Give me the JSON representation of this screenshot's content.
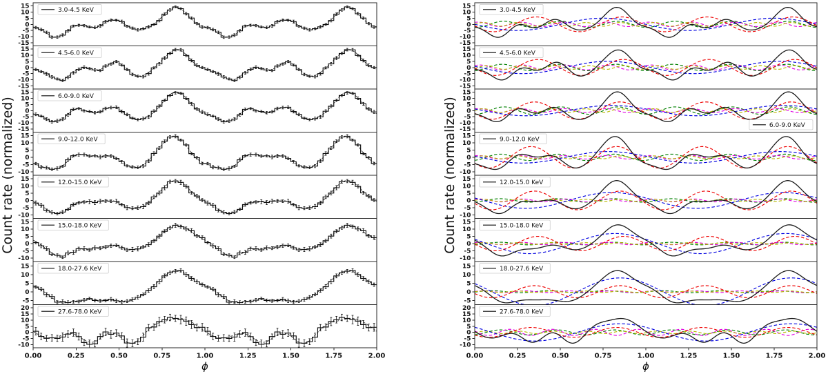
{
  "figure": {
    "ylabel": "Count rate (normalized)",
    "xlabel": "ϕ",
    "background": "#ffffff"
  },
  "chart_data": {
    "type": "line",
    "title": "",
    "xlabel": "ϕ",
    "ylabel": "Count rate (normalized)",
    "x_range": [
      0,
      2
    ],
    "x_tick_labels": [
      "0.00",
      "0.25",
      "0.50",
      "0.75",
      "1.00",
      "1.25",
      "1.50",
      "1.75",
      "2.00"
    ],
    "grid": false,
    "columns": [
      {
        "name": "pulse-profiles",
        "content": "binned count-rate pulse profiles (step histogram with error bars) with dashed best-fit model overlaid"
      },
      {
        "name": "harmonic-decomposition",
        "content": "best-fit model (black solid) with Fourier harmonic components 1-5 (colored dashed)"
      }
    ],
    "total_color": "#1a1a1a",
    "model_fit_color": "#333333",
    "harmonic_colors": {
      "1": "#0000e0",
      "2": "#ee0000",
      "3": "#008000",
      "4": "#e000e0",
      "5": "#b8b800"
    },
    "legend_position_default": "top-left",
    "bins_per_cycle": 32,
    "bands": [
      {
        "label": "3.0-4.5 KeV",
        "y_ticks": [
          15,
          10,
          5,
          0,
          -5,
          -10,
          -15
        ],
        "y_lim": [
          -17.5,
          17.5
        ],
        "harmonics": [
          {
            "order": 1,
            "amplitude": 5.0,
            "peak_phase": 0.75
          },
          {
            "order": 2,
            "amplitude": 6.0,
            "peak_phase": 0.36
          },
          {
            "order": 3,
            "amplitude": 2.5,
            "peak_phase": 0.17
          },
          {
            "order": 4,
            "amplitude": 1.8,
            "peak_phase": 0.02
          },
          {
            "order": 5,
            "amplitude": 1.5,
            "peak_phase": 0.05
          }
        ],
        "noise": {
          "jitter": 0.9,
          "error_bar": 1.0,
          "seed": 11
        },
        "right_legend_pos": "top-left"
      },
      {
        "label": "4.5-6.0 KeV",
        "y_ticks": [
          15,
          10,
          5,
          0,
          -5,
          -10,
          -15
        ],
        "y_lim": [
          -17.5,
          17.5
        ],
        "harmonics": [
          {
            "order": 1,
            "amplitude": 5.0,
            "peak_phase": 0.78
          },
          {
            "order": 2,
            "amplitude": 6.5,
            "peak_phase": 0.37
          },
          {
            "order": 3,
            "amplitude": 2.6,
            "peak_phase": 0.16
          },
          {
            "order": 4,
            "amplitude": 2.0,
            "peak_phase": 0.03
          },
          {
            "order": 5,
            "amplitude": 1.5,
            "peak_phase": 0.07
          }
        ],
        "noise": {
          "jitter": 1.0,
          "error_bar": 1.1,
          "seed": 22
        },
        "right_legend_pos": "top-left"
      },
      {
        "label": "6.0-9.0 KeV",
        "y_ticks": [
          15,
          10,
          5,
          0,
          -5,
          -10,
          -15
        ],
        "y_lim": [
          -17.5,
          17.5
        ],
        "harmonics": [
          {
            "order": 1,
            "amplitude": 4.2,
            "peak_phase": 0.8
          },
          {
            "order": 2,
            "amplitude": 7.0,
            "peak_phase": 0.35
          },
          {
            "order": 3,
            "amplitude": 3.0,
            "peak_phase": 0.17
          },
          {
            "order": 4,
            "amplitude": 1.6,
            "peak_phase": 0.02
          },
          {
            "order": 5,
            "amplitude": 1.5,
            "peak_phase": 0.05
          }
        ],
        "noise": {
          "jitter": 0.9,
          "error_bar": 1.0,
          "seed": 33
        },
        "right_legend_pos": "bottom-right"
      },
      {
        "label": "9.0-12.0 KeV",
        "y_ticks": [
          15,
          10,
          5,
          0,
          -5,
          -10
        ],
        "y_lim": [
          -12.5,
          17.5
        ],
        "harmonics": [
          {
            "order": 1,
            "amplitude": 4.0,
            "peak_phase": 0.78
          },
          {
            "order": 2,
            "amplitude": 7.5,
            "peak_phase": 0.33
          },
          {
            "order": 3,
            "amplitude": 2.2,
            "peak_phase": 0.15
          },
          {
            "order": 4,
            "amplitude": 1.2,
            "peak_phase": 0.02
          },
          {
            "order": 5,
            "amplitude": 1.0,
            "peak_phase": 0.05
          }
        ],
        "noise": {
          "jitter": 0.9,
          "error_bar": 1.0,
          "seed": 44
        },
        "right_legend_pos": "top-left"
      },
      {
        "label": "12.0-15.0 KeV",
        "y_ticks": [
          15,
          10,
          5,
          0,
          -5,
          -10
        ],
        "y_lim": [
          -12.5,
          17.5
        ],
        "harmonics": [
          {
            "order": 1,
            "amplitude": 5.5,
            "peak_phase": 0.8
          },
          {
            "order": 2,
            "amplitude": 6.5,
            "peak_phase": 0.35
          },
          {
            "order": 3,
            "amplitude": 1.2,
            "peak_phase": 0.15
          },
          {
            "order": 4,
            "amplitude": 1.0,
            "peak_phase": 0.03
          },
          {
            "order": 5,
            "amplitude": 0.8,
            "peak_phase": 0.05
          }
        ],
        "noise": {
          "jitter": 1.0,
          "error_bar": 1.2,
          "seed": 55
        },
        "right_legend_pos": "top-left"
      },
      {
        "label": "15.0-18.0 KeV",
        "y_ticks": [
          15,
          10,
          5,
          0,
          -5,
          -10
        ],
        "y_lim": [
          -12.5,
          17.5
        ],
        "harmonics": [
          {
            "order": 1,
            "amplitude": 7.0,
            "peak_phase": 0.82
          },
          {
            "order": 2,
            "amplitude": 5.0,
            "peak_phase": 0.37
          },
          {
            "order": 3,
            "amplitude": 0.9,
            "peak_phase": 0.15
          },
          {
            "order": 4,
            "amplitude": 0.8,
            "peak_phase": 0.03
          },
          {
            "order": 5,
            "amplitude": 0.6,
            "peak_phase": 0.05
          }
        ],
        "noise": {
          "jitter": 1.0,
          "error_bar": 1.2,
          "seed": 66
        },
        "right_legend_pos": "top-left"
      },
      {
        "label": "18.0-27.6 KeV",
        "y_ticks": [
          15,
          10,
          5,
          0,
          -5
        ],
        "y_lim": [
          -7.5,
          17.5
        ],
        "harmonics": [
          {
            "order": 1,
            "amplitude": 8.0,
            "peak_phase": 0.85
          },
          {
            "order": 2,
            "amplitude": 3.5,
            "peak_phase": 0.35
          },
          {
            "order": 3,
            "amplitude": 0.6,
            "peak_phase": 0.1
          },
          {
            "order": 4,
            "amplitude": 0.5,
            "peak_phase": 0.05
          },
          {
            "order": 5,
            "amplitude": 0.4,
            "peak_phase": 0.05
          }
        ],
        "noise": {
          "jitter": 0.8,
          "error_bar": 1.0,
          "seed": 77
        },
        "right_legend_pos": "top-left"
      },
      {
        "label": "27.6-78.0 KeV",
        "y_ticks": [
          20,
          15,
          10,
          5,
          0,
          -5,
          -10
        ],
        "y_lim": [
          -12.5,
          22.5
        ],
        "harmonics": [
          {
            "order": 1,
            "amplitude": 7.0,
            "peak_phase": 0.85
          },
          {
            "order": 2,
            "amplitude": 4.0,
            "peak_phase": 0.33
          },
          {
            "order": 3,
            "amplitude": 2.0,
            "peak_phase": 0.15
          },
          {
            "order": 4,
            "amplitude": 2.5,
            "peak_phase": 0.205
          },
          {
            "order": 5,
            "amplitude": 1.0,
            "peak_phase": 0.06
          }
        ],
        "noise": {
          "jitter": 2.2,
          "error_bar": 2.8,
          "seed": 88
        },
        "right_legend_pos": "top-left"
      }
    ]
  }
}
